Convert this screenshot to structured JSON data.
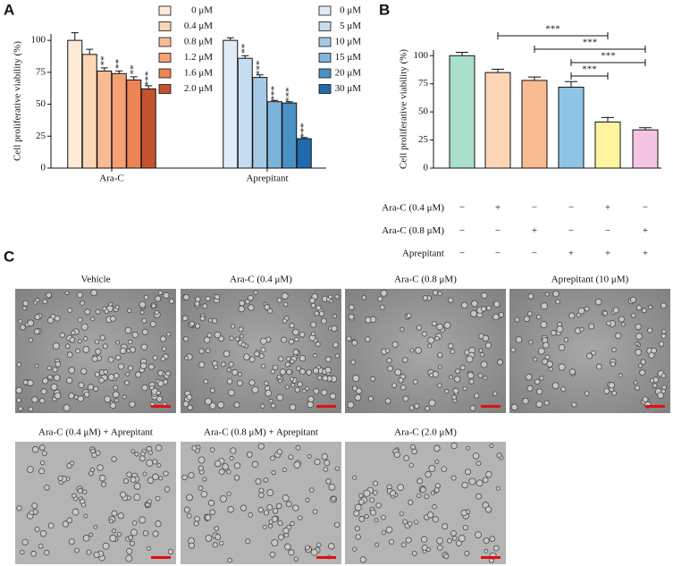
{
  "panels": [
    "A",
    "B",
    "C"
  ],
  "chart_data": [
    {
      "type": "grouped-bar",
      "ylabel": "Cell proliferative viability (%)",
      "categories": [
        "Ara-C",
        "Aprepitant"
      ],
      "ylim": [
        0,
        105
      ],
      "yticks": [
        0,
        25,
        50,
        75,
        100
      ],
      "groups": [
        {
          "labels": [
            "0 μM",
            "0.4 μM",
            "0.8 μM",
            "1.2 μM",
            "1.6 μM",
            "2.0 μM"
          ],
          "colors": [
            "#fdebd5",
            "#fbd6b7",
            "#f8bb93",
            "#f5a175",
            "#ec8453",
            "#c2532d"
          ],
          "values": [
            100,
            89,
            76,
            74,
            69,
            62
          ],
          "errors": [
            6,
            4,
            2.5,
            2,
            2.5,
            2.5
          ],
          "annotations": [
            null,
            null,
            "**",
            "**",
            "**",
            "***"
          ]
        },
        {
          "labels": [
            "0 μM",
            "5 μM",
            "10 μM",
            "15 μM",
            "20 μM",
            "30 μM"
          ],
          "colors": [
            "#e0ecf7",
            "#c6dcef",
            "#a4c9e5",
            "#7db4db",
            "#4a91c6",
            "#1f6bae"
          ],
          "values": [
            100,
            86,
            71,
            52,
            51,
            23
          ],
          "errors": [
            2,
            2,
            2,
            1,
            1,
            1
          ],
          "annotations": [
            null,
            "**",
            "***",
            "***",
            "***",
            "***"
          ]
        }
      ]
    },
    {
      "type": "bar",
      "ylabel": "Cell proliferative viability (%)",
      "ylim": [
        0,
        105
      ],
      "yticks": [
        0,
        25,
        50,
        75,
        100
      ],
      "values": [
        100,
        85,
        78,
        72,
        41,
        34
      ],
      "errors": [
        3,
        3,
        3,
        5,
        4,
        2
      ],
      "colors": [
        "#a9e0c9",
        "#fdd6b8",
        "#f9bb92",
        "#8fc5e4",
        "#fff59f",
        "#f4c6e4"
      ],
      "comparisons": [
        {
          "from": 1,
          "to": 4,
          "label": "***"
        },
        {
          "from": 2,
          "to": 5,
          "label": "***"
        },
        {
          "from": 3,
          "to": 5,
          "label": "***"
        },
        {
          "from": 3,
          "to": 4,
          "label": "***"
        }
      ],
      "treatments": [
        {
          "label": "Ara-C (0.4 μM)",
          "marks": [
            "−",
            "+",
            "−",
            "−",
            "+",
            "−"
          ]
        },
        {
          "label": "Ara-C (0.8 μM)",
          "marks": [
            "−",
            "−",
            "+",
            "−",
            "−",
            "+"
          ]
        },
        {
          "label": "Aprepitant",
          "marks": [
            "−",
            "−",
            "−",
            "+",
            "+",
            "+"
          ]
        }
      ]
    }
  ],
  "images": [
    {
      "title": "Vehicle"
    },
    {
      "title": "Ara-C (0.4 μM)"
    },
    {
      "title": "Ara-C (0.8 μM)"
    },
    {
      "title": "Aprepitant (10 μM)"
    },
    {
      "title": "Ara-C (0.4 μM) + Aprepitant"
    },
    {
      "title": "Ara-C (0.8 μM) + Aprepitant"
    },
    {
      "title": "Ara-C (2.0 μM)"
    }
  ]
}
